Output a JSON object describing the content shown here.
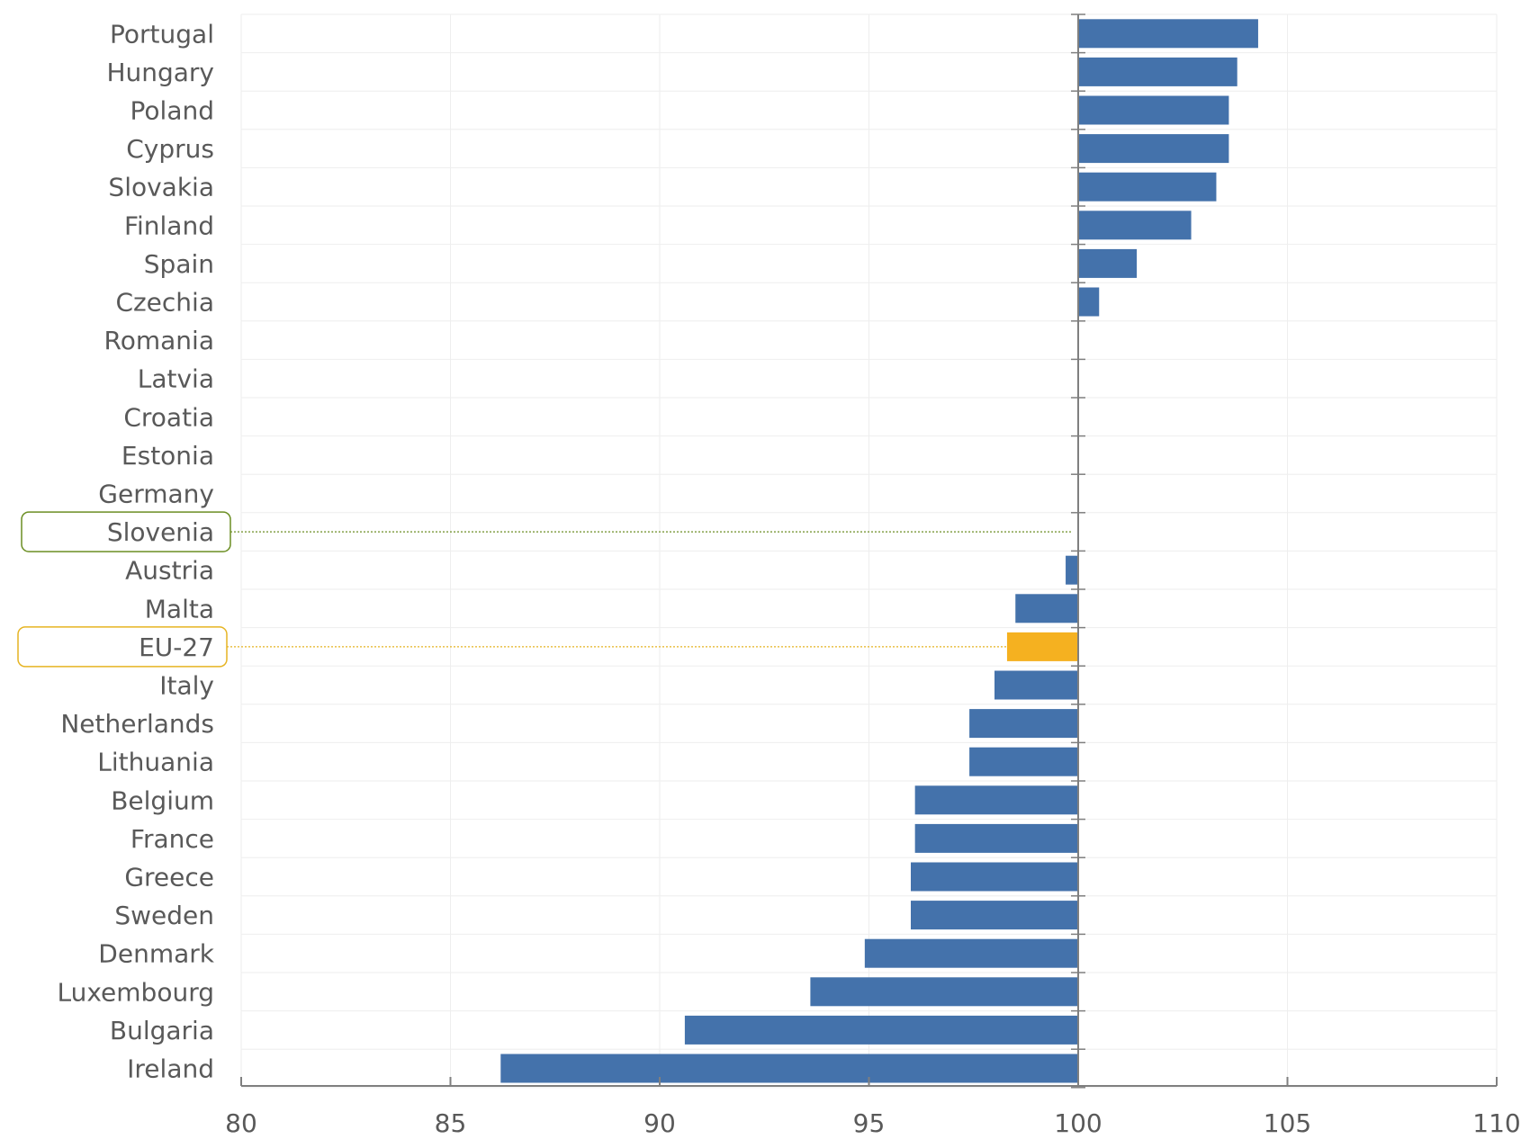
{
  "chart_data": {
    "type": "bar",
    "orientation": "horizontal",
    "title": "",
    "xlabel": "",
    "ylabel": "",
    "xlim": [
      80,
      110
    ],
    "xticks": [
      80,
      85,
      90,
      95,
      100,
      105,
      110
    ],
    "baseline": 100,
    "grid": true,
    "categories": [
      "Portugal",
      "Hungary",
      "Poland",
      "Cyprus",
      "Slovakia",
      "Finland",
      "Spain",
      "Czechia",
      "Romania",
      "Latvia",
      "Croatia",
      "Estonia",
      "Germany",
      "Slovenia",
      "Austria",
      "Malta",
      "EU-27",
      "Italy",
      "Netherlands",
      "Lithuania",
      "Belgium",
      "France",
      "Greece",
      "Sweden",
      "Denmark",
      "Luxembourg",
      "Bulgaria",
      "Ireland"
    ],
    "values": [
      104.3,
      103.8,
      103.6,
      103.6,
      103.3,
      102.7,
      101.4,
      100.5,
      100.0,
      100.0,
      100.0,
      100.0,
      100.0,
      100.0,
      99.7,
      98.5,
      98.3,
      98.0,
      97.4,
      97.4,
      96.1,
      96.1,
      96.0,
      96.0,
      94.9,
      93.6,
      90.6,
      86.2
    ],
    "highlighted": [
      "Slovenia",
      "EU-27"
    ],
    "colors": {
      "bar": "#4472ab",
      "eu_bar": "#f5b120",
      "slovenia_outline": "#6b8e23",
      "eu_outline": "#e6b422",
      "axis": "#7f7f7f",
      "grid": "#eeeeee",
      "text": "#595959"
    }
  }
}
